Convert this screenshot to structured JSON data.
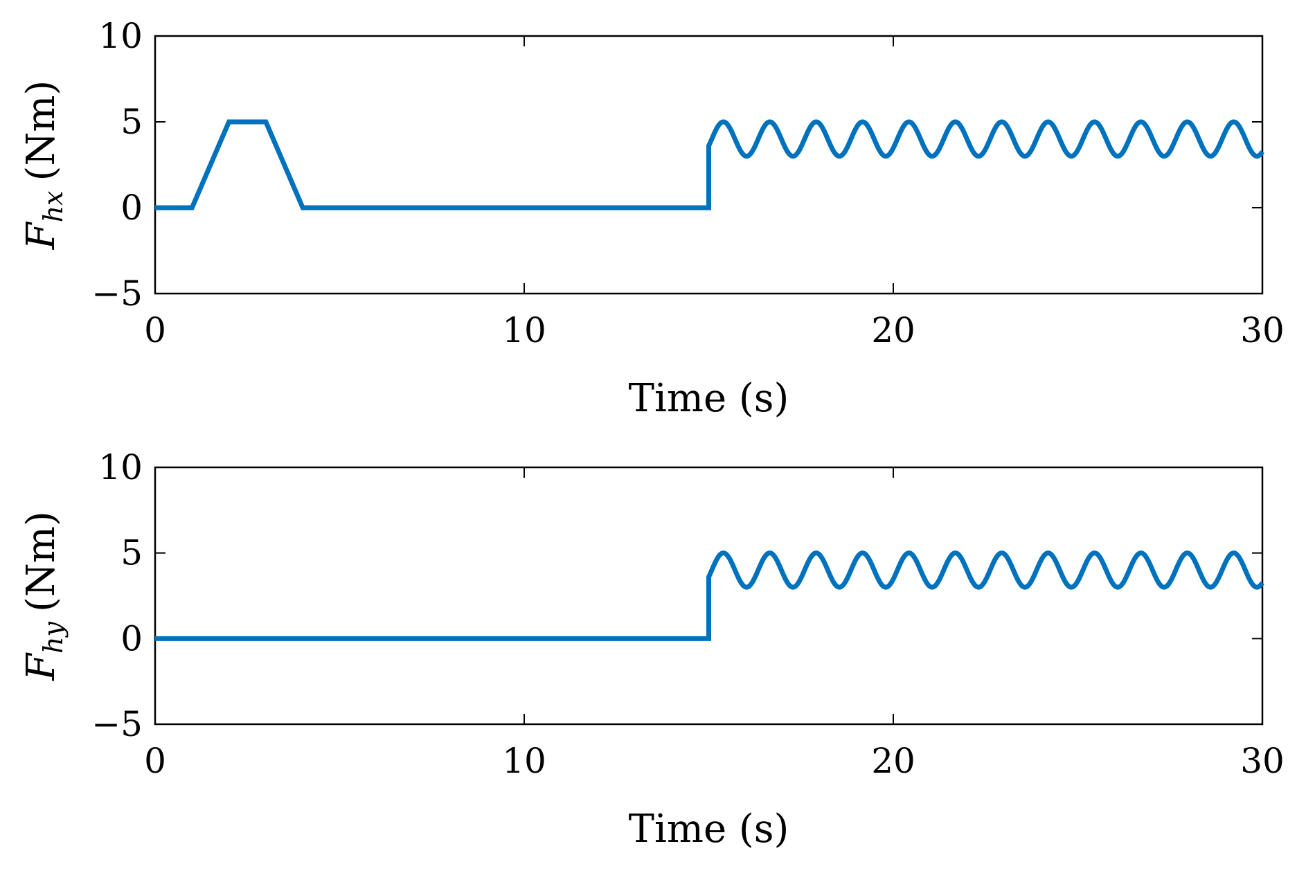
{
  "chart_data": [
    {
      "type": "line",
      "xlabel": "Time (s)",
      "ylabel": {
        "symbol": "F",
        "subscript": "hx",
        "unit": "(Nm)"
      },
      "xlim": [
        0,
        30
      ],
      "ylim": [
        -5,
        10
      ],
      "xticks": [
        0,
        10,
        20,
        30
      ],
      "yticks": [
        -5,
        0,
        5,
        10
      ],
      "xtick_labels": [
        "0",
        "10",
        "20",
        "30"
      ],
      "ytick_labels": [
        "−5",
        "0",
        "5",
        "10"
      ],
      "grid": false,
      "series": [
        {
          "color": "#0072bd",
          "segments": [
            {
              "x": [
                0,
                1,
                2,
                3,
                4,
                15
              ],
              "y": [
                0,
                0,
                5,
                5,
                0,
                0
              ]
            }
          ],
          "oscillation": {
            "start": 15,
            "end": 30,
            "center": 4,
            "amplitude": 1,
            "period": 1.257,
            "initial": 3.6
          }
        }
      ]
    },
    {
      "type": "line",
      "xlabel": "Time (s)",
      "ylabel": {
        "symbol": "F",
        "subscript": "hy",
        "unit": "(Nm)"
      },
      "xlim": [
        0,
        30
      ],
      "ylim": [
        -5,
        10
      ],
      "xticks": [
        0,
        10,
        20,
        30
      ],
      "yticks": [
        -5,
        0,
        5,
        10
      ],
      "xtick_labels": [
        "0",
        "10",
        "20",
        "30"
      ],
      "ytick_labels": [
        "−5",
        "0",
        "5",
        "10"
      ],
      "grid": false,
      "series": [
        {
          "color": "#0072bd",
          "segments": [
            {
              "x": [
                0,
                15
              ],
              "y": [
                0,
                0
              ]
            }
          ],
          "oscillation": {
            "start": 15,
            "end": 30,
            "center": 4,
            "amplitude": 1,
            "period": 1.257,
            "initial": 3.6
          }
        }
      ]
    }
  ]
}
